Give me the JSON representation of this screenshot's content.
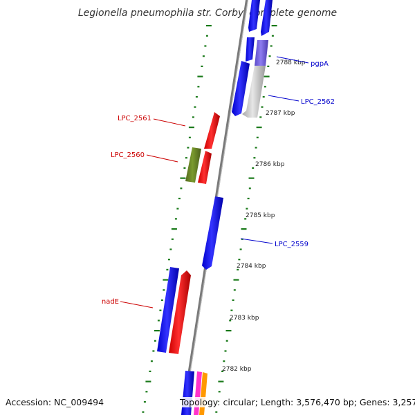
{
  "title": "Legionella pneumophila str. Corby, complete genome",
  "accession_text": "Accession: NC_009494",
  "topology_text": "Topology: circular; Length: 3,576,470 bp; Genes: 3,257",
  "colors": {
    "backbone": "#8c8c8c",
    "tick": "#1a7a1a",
    "forward_gene": "#ff0000",
    "reverse_gene": "#0000ff",
    "forward_label": "#cc0000",
    "reverse_label": "#0000cc",
    "rna": "#6b8e23",
    "pseudo": "#c8c8c8",
    "hypothetical": "#7b68ee",
    "magenta": "#ff33cc",
    "orange": "#ff9900"
  },
  "scale_labels": [
    "2788 kbp",
    "2787 kbp",
    "2786 kbp",
    "2785 kbp",
    "2784 kbp",
    "2783 kbp",
    "2782 kbp"
  ],
  "gene_labels": [
    {
      "name": "pgpA",
      "strand": "reverse"
    },
    {
      "name": "LPC_2562",
      "strand": "reverse"
    },
    {
      "name": "LPC_2561",
      "strand": "forward"
    },
    {
      "name": "LPC_2560",
      "strand": "forward"
    },
    {
      "name": "LPC_2559",
      "strand": "reverse"
    },
    {
      "name": "nadE",
      "strand": "forward"
    }
  ]
}
